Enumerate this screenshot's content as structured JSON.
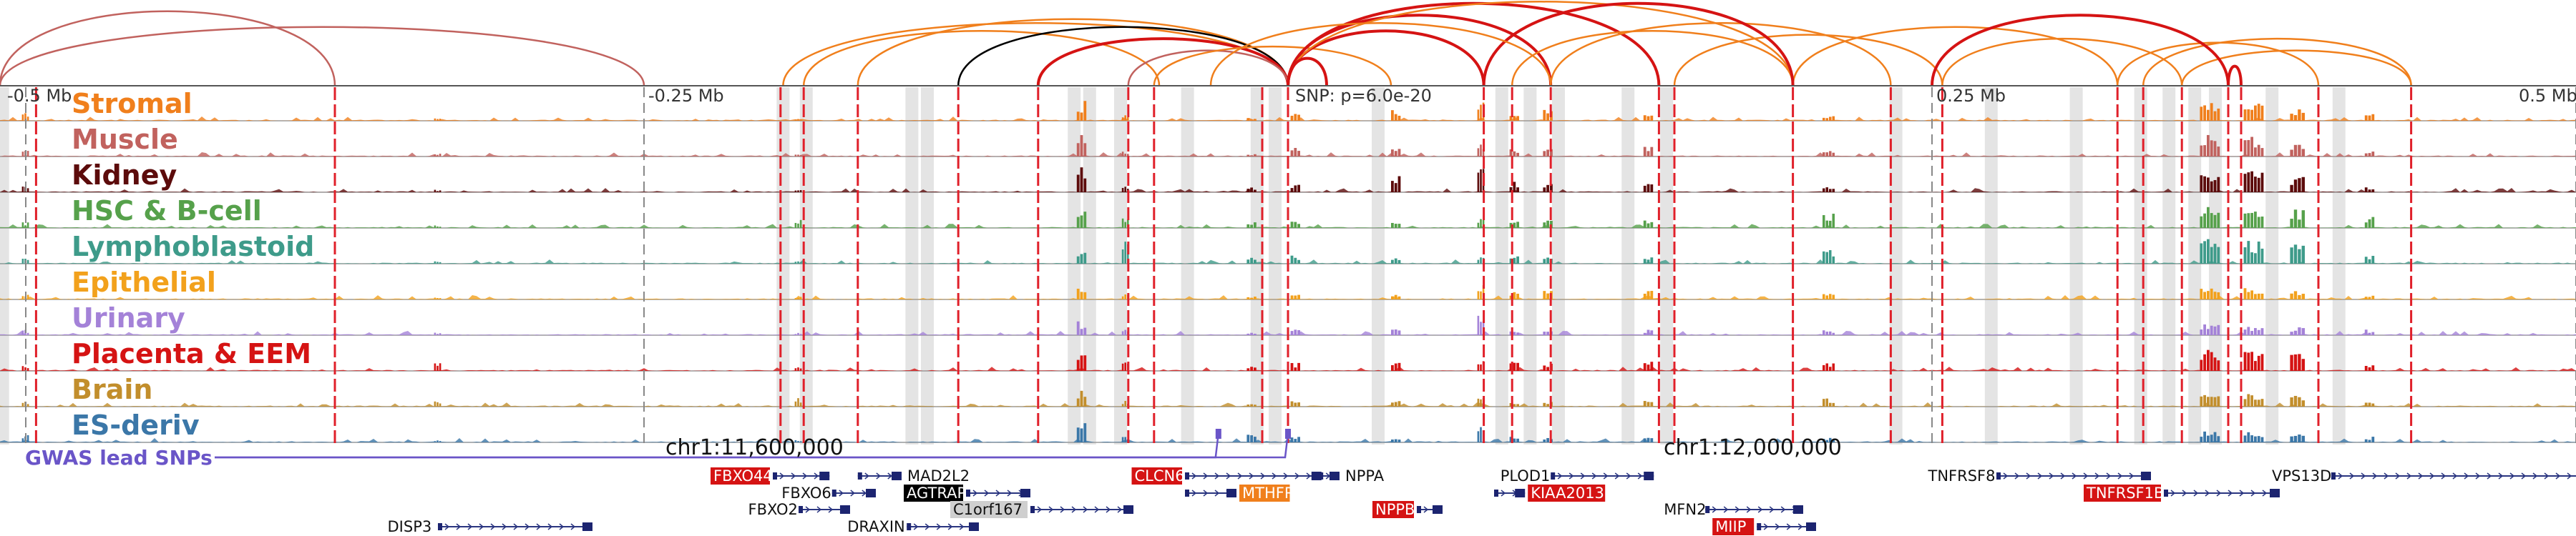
{
  "axis": {
    "labels": [
      {
        "text": "-0.5 Mb",
        "pos": -0.5
      },
      {
        "text": "-0.25 Mb",
        "pos": -0.25
      },
      {
        "text": "0.25 Mb",
        "pos": 0.25
      },
      {
        "text": "0.5 Mb",
        "pos": 0.5
      }
    ],
    "snp_label": "SNP: p=6.0e-20",
    "snp_pos": 0.0
  },
  "coords": {
    "left": {
      "text": "chr1:11,600,000",
      "pos": -0.225
    },
    "right": {
      "text": "chr1:12,000,000",
      "pos": 0.175
    }
  },
  "gwas_label": "GWAS lead SNPs",
  "gwas_snps": [
    -0.027,
    0.0
  ],
  "tracks": [
    {
      "name": "Stromal",
      "color": "#f07f1c"
    },
    {
      "name": "Muscle",
      "color": "#c1625e"
    },
    {
      "name": "Kidney",
      "color": "#5c0b0b"
    },
    {
      "name": "HSC & B-cell",
      "color": "#56a14b"
    },
    {
      "name": "Lymphoblastoid",
      "color": "#3e9b8a"
    },
    {
      "name": "Epithelial",
      "color": "#f2a11c"
    },
    {
      "name": "Urinary",
      "color": "#a482d8"
    },
    {
      "name": "Placenta & EEM",
      "color": "#d51313"
    },
    {
      "name": "Brain",
      "color": "#c28e2c"
    },
    {
      "name": "ES-deriv",
      "color": "#3b77a8"
    }
  ],
  "peaks": [
    {
      "pos": -0.08,
      "w": 0.004,
      "h": [
        0.7,
        0.8,
        0.9,
        0.7,
        0.5,
        0.4,
        0.5,
        0.6,
        0.6,
        0.7
      ]
    },
    {
      "pos": -0.063,
      "w": 0.003,
      "h": [
        0.2,
        0.2,
        0.2,
        0.5,
        0.8,
        0.2,
        0.2,
        0.3,
        0.2,
        0.2
      ]
    },
    {
      "pos": -0.014,
      "w": 0.004,
      "h": [
        0.1,
        0.1,
        0.2,
        0.2,
        0.3,
        0.1,
        0.1,
        0.2,
        0.1,
        0.3
      ]
    },
    {
      "pos": 0.003,
      "w": 0.004,
      "h": [
        0.3,
        0.3,
        0.3,
        0.3,
        0.3,
        0.2,
        0.2,
        0.3,
        0.2,
        0.2
      ]
    },
    {
      "pos": 0.042,
      "w": 0.004,
      "h": [
        0.4,
        0.3,
        0.6,
        0.3,
        0.3,
        0.2,
        0.2,
        0.3,
        0.2,
        0.2
      ]
    },
    {
      "pos": 0.075,
      "w": 0.003,
      "h": [
        0.9,
        0.5,
        0.9,
        0.4,
        0.3,
        0.5,
        0.8,
        0.4,
        0.3,
        0.6
      ]
    },
    {
      "pos": 0.088,
      "w": 0.004,
      "h": [
        0.3,
        0.3,
        0.4,
        0.3,
        0.3,
        0.3,
        0.2,
        0.3,
        0.2,
        0.2
      ]
    },
    {
      "pos": 0.101,
      "w": 0.004,
      "h": [
        0.4,
        0.3,
        0.3,
        0.3,
        0.3,
        0.3,
        0.2,
        0.3,
        0.2,
        0.2
      ]
    },
    {
      "pos": 0.14,
      "w": 0.004,
      "h": [
        0.3,
        0.4,
        0.3,
        0.3,
        0.3,
        0.3,
        0.2,
        0.4,
        0.3,
        0.2
      ]
    },
    {
      "pos": 0.21,
      "w": 0.005,
      "h": [
        0.2,
        0.3,
        0.2,
        0.5,
        0.5,
        0.2,
        0.2,
        0.3,
        0.3,
        0.2
      ]
    },
    {
      "pos": 0.358,
      "w": 0.008,
      "h": [
        0.7,
        0.8,
        0.7,
        0.9,
        0.9,
        0.5,
        0.4,
        0.8,
        0.5,
        0.4
      ]
    },
    {
      "pos": 0.375,
      "w": 0.008,
      "h": [
        0.6,
        0.7,
        0.8,
        0.9,
        0.9,
        0.4,
        0.3,
        0.7,
        0.5,
        0.4
      ]
    },
    {
      "pos": 0.392,
      "w": 0.006,
      "h": [
        0.4,
        0.5,
        0.6,
        0.7,
        0.7,
        0.3,
        0.3,
        0.6,
        0.4,
        0.3
      ]
    },
    {
      "pos": 0.42,
      "w": 0.004,
      "h": [
        0.3,
        0.2,
        0.2,
        0.4,
        0.3,
        0.2,
        0.2,
        0.3,
        0.2,
        0.2
      ]
    },
    {
      "pos": -0.19,
      "w": 0.003,
      "h": [
        0.1,
        0.1,
        0.1,
        0.3,
        0.1,
        0.1,
        0.1,
        0.2,
        0.3,
        0.1
      ]
    },
    {
      "pos": -0.33,
      "w": 0.003,
      "h": [
        0.1,
        0.1,
        0.1,
        0.1,
        0.1,
        0.1,
        0.1,
        0.3,
        0.2,
        0.1
      ]
    },
    {
      "pos": -0.49,
      "w": 0.003,
      "h": [
        0.3,
        0.3,
        0.3,
        0.2,
        0.2,
        0.2,
        0.2,
        0.2,
        0.2,
        0.3
      ]
    }
  ],
  "red_lines": [
    -0.486,
    -0.37,
    -0.197,
    -0.188,
    -0.167,
    -0.128,
    -0.097,
    -0.062,
    -0.052,
    -0.01,
    0.0,
    0.076,
    0.087,
    0.102,
    0.144,
    0.15,
    0.196,
    0.234,
    0.254,
    0.322,
    0.332,
    0.347,
    0.365,
    0.37,
    0.4,
    0.436
  ],
  "grey_bands": [
    -0.499,
    -0.196,
    -0.187,
    -0.146,
    -0.14,
    -0.083,
    -0.077,
    -0.065,
    -0.039,
    -0.012,
    -0.005,
    0.035,
    0.083,
    0.094,
    0.105,
    0.132,
    0.147,
    0.236,
    0.273,
    0.306,
    0.331,
    0.342,
    0.352,
    0.36,
    0.382,
    0.408
  ],
  "grey_lines": [
    -0.49,
    -0.25,
    0.25,
    0.5
  ],
  "arcs": [
    {
      "a": -0.5,
      "b": -0.25,
      "color": "#c1625e",
      "h": 0.75
    },
    {
      "a": -0.5,
      "b": -0.37,
      "color": "#c1625e",
      "h": 0.95
    },
    {
      "a": -0.196,
      "b": 0.0,
      "color": "#f07f1c",
      "h": 0.8
    },
    {
      "a": -0.188,
      "b": -0.05,
      "color": "#f07f1c",
      "h": 0.7
    },
    {
      "a": -0.167,
      "b": 0.0,
      "color": "#f07f1c",
      "h": 0.85
    },
    {
      "a": -0.128,
      "b": 0.0,
      "color": "#000000",
      "h": 0.75
    },
    {
      "a": -0.097,
      "b": 0.0,
      "color": "#d51313",
      "h": 0.6
    },
    {
      "a": -0.062,
      "b": 0.0,
      "color": "#c1625e",
      "h": 0.45
    },
    {
      "a": -0.052,
      "b": 0.04,
      "color": "#f07f1c",
      "h": 0.5
    },
    {
      "a": 0.0,
      "b": 0.076,
      "color": "#d51313",
      "h": 0.7
    },
    {
      "a": 0.0,
      "b": 0.102,
      "color": "#d51313",
      "h": 0.9
    },
    {
      "a": 0.0,
      "b": 0.144,
      "color": "#d51313",
      "h": 1.05
    },
    {
      "a": 0.0,
      "b": 0.196,
      "color": "#f07f1c",
      "h": 1.1
    },
    {
      "a": 0.0,
      "b": 0.015,
      "color": "#d51313",
      "h": 0.35
    },
    {
      "a": 0.087,
      "b": 0.196,
      "color": "#f07f1c",
      "h": 0.7
    },
    {
      "a": 0.102,
      "b": 0.234,
      "color": "#f07f1c",
      "h": 0.8
    },
    {
      "a": 0.15,
      "b": 0.254,
      "color": "#f07f1c",
      "h": 0.65
    },
    {
      "a": 0.196,
      "b": 0.322,
      "color": "#f07f1c",
      "h": 0.75
    },
    {
      "a": 0.254,
      "b": 0.347,
      "color": "#f07f1c",
      "h": 0.6
    },
    {
      "a": 0.322,
      "b": 0.4,
      "color": "#f07f1c",
      "h": 0.55
    },
    {
      "a": 0.332,
      "b": 0.436,
      "color": "#f07f1c",
      "h": 0.6
    },
    {
      "a": 0.347,
      "b": 0.436,
      "color": "#f07f1c",
      "h": 0.45
    },
    {
      "a": 0.365,
      "b": 0.37,
      "color": "#d51313",
      "h": 0.25
    },
    {
      "a": 0.25,
      "b": 0.365,
      "color": "#d51313",
      "h": 0.9
    },
    {
      "a": 0.076,
      "b": 0.196,
      "color": "#d51313",
      "h": 1.05
    },
    {
      "a": -0.03,
      "b": 0.102,
      "color": "#f07f1c",
      "h": 0.8
    }
  ],
  "genes": [
    {
      "name": "FBXO44",
      "start": -0.2,
      "end": -0.178,
      "row": 0,
      "boxed": true,
      "box_color": "#d51313",
      "label_side": "left"
    },
    {
      "name": "FBXO6",
      "start": -0.177,
      "end": -0.16,
      "row": 1,
      "boxed": false,
      "label_side": "left"
    },
    {
      "name": "FBXO2",
      "start": -0.19,
      "end": -0.17,
      "row": 2,
      "boxed": false,
      "label_side": "inline"
    },
    {
      "name": "MAD2L2",
      "start": -0.167,
      "end": -0.15,
      "row": 0,
      "boxed": false,
      "label_side": "right"
    },
    {
      "name": "AGTRAP",
      "start": -0.125,
      "end": -0.1,
      "row": 1,
      "boxed": true,
      "box_color": "#000000",
      "label_side": "left"
    },
    {
      "name": "DRAXIN",
      "start": -0.148,
      "end": -0.12,
      "row": 3,
      "boxed": false,
      "label_side": "left"
    },
    {
      "name": "C1orf167",
      "start": -0.1,
      "end": -0.06,
      "row": 2,
      "boxed": true,
      "box_color": "#cfcfcf",
      "label_side": "left"
    },
    {
      "name": "DISP3",
      "start": -0.33,
      "end": -0.27,
      "row": 3,
      "boxed": false,
      "label_side": "left"
    },
    {
      "name": "CLCN6",
      "start": -0.04,
      "end": 0.013,
      "row": 0,
      "boxed": true,
      "box_color": "#d51313",
      "label_side": "left"
    },
    {
      "name": "MTHFR",
      "start": -0.04,
      "end": -0.02,
      "row": 1,
      "boxed": true,
      "box_color": "#f07f1c",
      "label_side": "right"
    },
    {
      "name": "NPPA",
      "start": 0.012,
      "end": 0.02,
      "row": 0,
      "boxed": false,
      "label_side": "right"
    },
    {
      "name": "NPPB",
      "start": 0.05,
      "end": 0.06,
      "row": 2,
      "boxed": true,
      "box_color": "#d51313",
      "label_side": "inline"
    },
    {
      "name": "PLOD1",
      "start": 0.102,
      "end": 0.142,
      "row": 0,
      "boxed": false,
      "label_side": "left"
    },
    {
      "name": "KIAA2013",
      "start": 0.08,
      "end": 0.092,
      "row": 1,
      "boxed": true,
      "box_color": "#d51313",
      "label_side": "right"
    },
    {
      "name": "MFN2",
      "start": 0.162,
      "end": 0.2,
      "row": 2,
      "boxed": false,
      "label_side": "left"
    },
    {
      "name": "MIIP",
      "start": 0.182,
      "end": 0.205,
      "row": 3,
      "boxed": true,
      "box_color": "#d51313",
      "label_side": "left"
    },
    {
      "name": "TNFRSF8",
      "start": 0.275,
      "end": 0.335,
      "row": 0,
      "boxed": false,
      "label_side": "left"
    },
    {
      "name": "TNFRSF1B",
      "start": 0.34,
      "end": 0.385,
      "row": 1,
      "boxed": true,
      "box_color": "#d51313",
      "label_side": "left"
    },
    {
      "name": "VPS13D",
      "start": 0.405,
      "end": 0.52,
      "row": 0,
      "boxed": false,
      "label_side": "left"
    }
  ]
}
